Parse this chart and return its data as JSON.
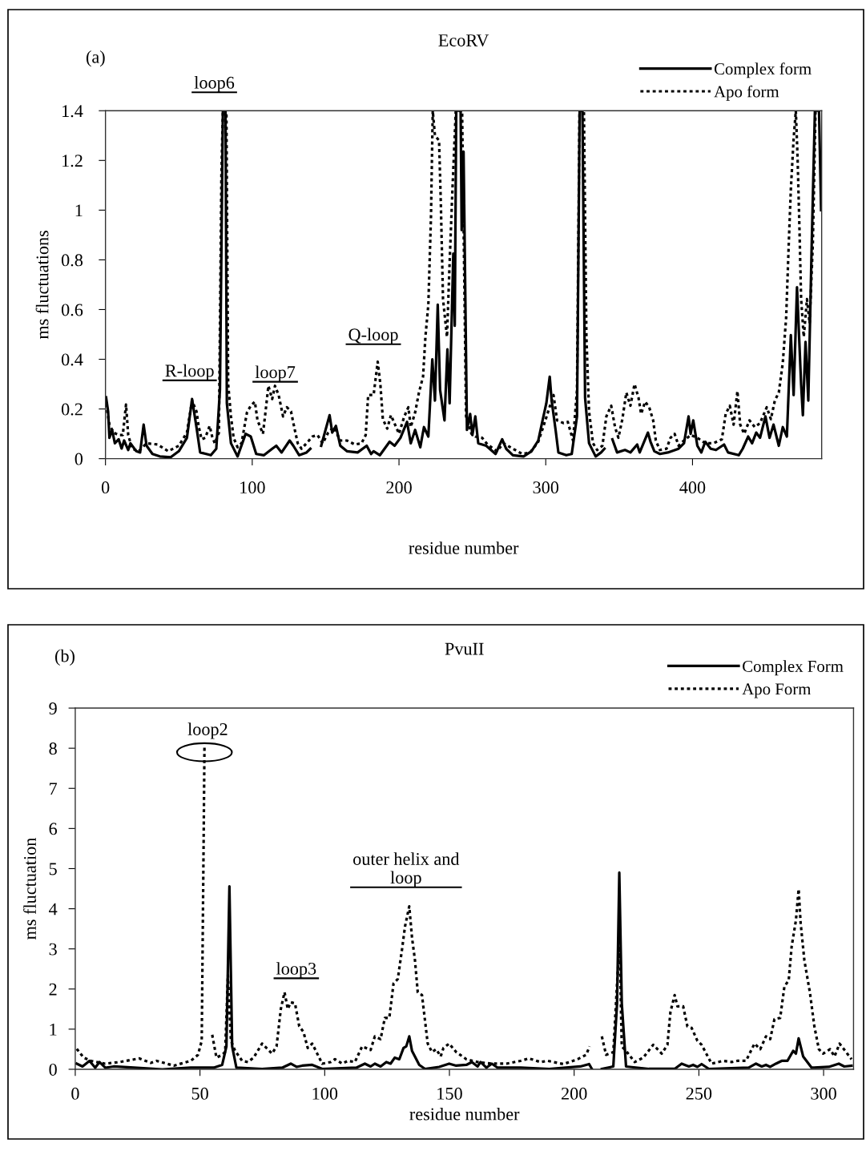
{
  "chart_data": [
    {
      "type": "line",
      "title": "EcoRV",
      "xlabel": "residue number",
      "ylabel": "ms fluctuations",
      "xlim": [
        0,
        488
      ],
      "ylim": [
        0,
        1.4
      ],
      "xticks": [
        0,
        100,
        200,
        300,
        400
      ],
      "yticks": [
        0,
        0.2,
        0.4,
        0.6,
        0.8,
        1,
        1.2,
        1.4
      ],
      "grid": false,
      "legend": "top right",
      "annotations": [
        "(a)",
        "loop6",
        "R-loop",
        "loop7",
        "Q-loop"
      ],
      "series": [
        {
          "name": "Complex form",
          "color": "#000000",
          "line_style": "solid",
          "x": [
            0.4,
            1.8,
            2.7,
            4.5,
            6.4,
            9,
            11,
            12.7,
            15.5,
            17,
            21,
            23.6,
            26,
            28,
            32,
            37,
            44.5,
            50,
            55.5,
            59,
            62,
            64.5,
            71.8,
            75.5,
            78,
            80,
            81.8,
            82.7,
            85.5,
            90,
            95.5,
            99,
            102.7,
            108,
            113.6,
            116.4,
            120,
            125.5,
            128,
            132,
            137,
            139.6,
            143,
            147,
            152.7,
            154.5,
            157,
            160,
            164.5,
            171.8,
            178,
            181,
            182.7,
            187,
            193.6,
            197,
            201,
            205.5,
            208,
            211,
            214.5,
            217,
            220,
            222.7,
            224.5,
            226.4,
            228,
            231,
            233,
            234.5,
            237,
            238,
            239,
            242,
            242.7,
            244,
            246.3,
            248.5,
            250,
            252,
            254,
            259.4,
            265.8,
            270.3,
            273,
            277.6,
            284.9,
            290.3,
            294.9,
            297.6,
            300.4,
            302.7,
            304,
            306.7,
            308.6,
            314,
            317.7,
            321.3,
            323.1,
            325,
            326.8,
            329.5,
            334,
            337.7,
            340,
            342.5,
            345.4,
            348.6,
            354,
            357.7,
            362.3,
            364,
            369.6,
            371.4,
            374,
            377.8,
            383.2,
            390.5,
            394.2,
            397.3,
            398.7,
            400.5,
            403.3,
            406,
            408.7,
            412.4,
            416,
            421.5,
            424.2,
            431.5,
            434.2,
            437.9,
            440.6,
            443.4,
            446,
            449.7,
            452.5,
            455.2,
            458.8,
            461.5,
            464.3,
            467,
            468.9,
            471.2,
            474,
            475.2,
            477,
            478.9,
            481.2,
            483.4,
            486.2,
            487.6
          ],
          "values": [
            0.247,
            0.19,
            0.084,
            0.116,
            0.062,
            0.078,
            0.041,
            0.073,
            0.035,
            0.062,
            0.03,
            0.025,
            0.137,
            0.052,
            0.019,
            0.009,
            0.006,
            0.03,
            0.084,
            0.24,
            0.127,
            0.025,
            0.014,
            0.04,
            0.277,
            1.4,
            1.4,
            0.223,
            0.062,
            0.009,
            0.1,
            0.089,
            0.019,
            0.014,
            0.04,
            0.052,
            0.025,
            0.073,
            0.052,
            0.014,
            0.025,
            0.04,
            null,
            0.052,
            0.175,
            0.105,
            0.132,
            0.052,
            0.03,
            0.025,
            0.052,
            0.019,
            0.03,
            0.014,
            0.068,
            0.052,
            0.084,
            0.148,
            0.062,
            0.116,
            0.046,
            0.127,
            0.089,
            0.4,
            0.234,
            0.62,
            0.277,
            0.154,
            0.44,
            0.223,
            0.825,
            0.535,
            1.4,
            1.4,
            0.92,
            1.235,
            0.116,
            0.18,
            0.095,
            0.17,
            0.062,
            0.052,
            0.019,
            0.078,
            0.04,
            0.014,
            0.009,
            0.03,
            0.073,
            0.148,
            0.223,
            0.33,
            0.234,
            0.116,
            0.025,
            0.014,
            0.019,
            0.17,
            1.4,
            1.4,
            0.245,
            0.062,
            0.009,
            0.025,
            0.04,
            null,
            0.078,
            0.025,
            0.035,
            0.025,
            0.057,
            0.025,
            0.105,
            0.068,
            0.03,
            0.019,
            0.025,
            0.04,
            0.062,
            0.17,
            0.1,
            0.154,
            0.052,
            0.025,
            0.068,
            0.04,
            0.035,
            0.057,
            0.025,
            0.014,
            0.04,
            0.089,
            0.062,
            0.105,
            0.084,
            0.17,
            0.084,
            0.137,
            0.052,
            0.127,
            0.089,
            0.497,
            0.256,
            0.69,
            0.3,
            0.175,
            0.47,
            0.234,
            0.857,
            1.4,
            1.4,
            1.0
          ]
        },
        {
          "name": "Apo form",
          "color": "#000000",
          "line_style": "dotted",
          "x": [
            0.4,
            2.7,
            5.5,
            9,
            11.8,
            14,
            15.5,
            18.2,
            22.7,
            28,
            35.5,
            42.7,
            50,
            55.5,
            59,
            62,
            63.6,
            65.5,
            68,
            71,
            72.7,
            74.5,
            77.3,
            79,
            80,
            82.4,
            83.6,
            85.5,
            87.3,
            90,
            92.7,
            96.4,
            99,
            101.8,
            103.6,
            107.3,
            109,
            111,
            113.6,
            115.5,
            118,
            121,
            123.6,
            126.4,
            129,
            131,
            133.6,
            137,
            141,
            144.5,
            148,
            151.8,
            155.5,
            160,
            164.5,
            170,
            174.5,
            177.3,
            179,
            182.7,
            185.5,
            187.3,
            189,
            192,
            194.5,
            197.3,
            200,
            203.6,
            206.4,
            208,
            211,
            213.6,
            216.4,
            218,
            220,
            221.8,
            223,
            224.5,
            227.3,
            228.5,
            230,
            232.7,
            234.5,
            236.4,
            238.7,
            243,
            245.7,
            249.4,
            252,
            256.6,
            260.3,
            266.7,
            271.2,
            277.6,
            284,
            289.4,
            294.9,
            298.5,
            302.2,
            305.3,
            307.7,
            312.2,
            315,
            318.6,
            321.3,
            323,
            326,
            327.7,
            329.5,
            332.2,
            335,
            338.6,
            341.3,
            344.6,
            347.2,
            349.5,
            352.2,
            354.9,
            357.7,
            360.5,
            363.2,
            365,
            367.7,
            370.5,
            373.2,
            375,
            377.8,
            382.3,
            385,
            387.8,
            390.5,
            394.2,
            398.7,
            403.3,
            408.7,
            414.2,
            420,
            422.6,
            425.4,
            428,
            430.6,
            432.5,
            435.2,
            438.8,
            442.4,
            446,
            450.6,
            453.4,
            456.1,
            458.8,
            461.5,
            463.8,
            465.6,
            467,
            468.9,
            470.4,
            471.6,
            472.9,
            474,
            475.8,
            478,
            479.8,
            482,
            483.8,
            486.2
          ],
          "values": [
            0.22,
            0.137,
            0.105,
            0.095,
            0.095,
            0.218,
            0.095,
            0.04,
            0.03,
            0.062,
            0.057,
            0.03,
            0.052,
            0.105,
            0.234,
            0.19,
            0.127,
            0.078,
            0.084,
            0.132,
            0.089,
            0.062,
            0.105,
            1.14,
            1.4,
            1.4,
            0.3,
            0.17,
            0.084,
            0.046,
            0.062,
            0.186,
            0.213,
            0.229,
            0.154,
            0.1,
            0.186,
            0.293,
            0.24,
            0.293,
            0.256,
            0.17,
            0.207,
            0.19,
            0.116,
            0.062,
            0.04,
            0.062,
            0.089,
            0.095,
            0.062,
            0.105,
            0.127,
            0.073,
            0.073,
            0.057,
            0.062,
            0.095,
            0.256,
            0.256,
            0.39,
            0.3,
            0.159,
            0.121,
            0.175,
            0.137,
            0.1,
            0.17,
            0.207,
            0.127,
            0.186,
            0.266,
            0.33,
            0.49,
            0.62,
            0.975,
            1.4,
            1.3,
            1.28,
            1.03,
            0.642,
            0.49,
            0.79,
            1.08,
            1.4,
            1.4,
            0.17,
            0.1,
            0.089,
            0.084,
            0.057,
            0.03,
            0.062,
            0.04,
            0.019,
            0.025,
            0.068,
            0.132,
            0.2,
            0.256,
            0.154,
            0.143,
            0.148,
            0.073,
            0.277,
            1.4,
            1.4,
            0.49,
            0.19,
            0.062,
            0.035,
            0.052,
            0.17,
            0.213,
            0.127,
            0.084,
            0.159,
            0.266,
            0.213,
            0.3,
            0.245,
            0.18,
            0.229,
            0.207,
            0.154,
            0.073,
            0.035,
            0.04,
            0.084,
            0.1,
            0.052,
            0.073,
            0.095,
            0.084,
            0.062,
            0.062,
            0.078,
            0.18,
            0.213,
            0.137,
            0.272,
            0.137,
            0.1,
            0.154,
            0.127,
            0.143,
            0.207,
            0.159,
            0.234,
            0.266,
            0.385,
            0.567,
            0.868,
            1.083,
            1.287,
            1.4,
            1.21,
            0.92,
            0.642,
            0.49,
            0.642,
            0.545,
            0.868,
            1.4,
            1.4
          ]
        }
      ]
    },
    {
      "type": "line",
      "title": "PvuII",
      "xlabel": "residue number",
      "ylabel": "ms fluctuation",
      "xlim": [
        0,
        312
      ],
      "ylim": [
        0,
        9
      ],
      "xticks": [
        0,
        50,
        100,
        150,
        200,
        250,
        300
      ],
      "yticks": [
        0,
        1,
        2,
        3,
        4,
        5,
        6,
        7,
        8,
        9
      ],
      "grid": false,
      "legend": "top right",
      "annotations": [
        "(b)",
        {
          "text": "loop2",
          "x": 51.8,
          "y": 7.9
        },
        "loop3",
        "outer helix and\nloop"
      ],
      "series": [
        {
          "name": "Complex Form",
          "color": "#000000",
          "line_style": "solid",
          "x": [
            0.6,
            2.9,
            5.7,
            8,
            9.7,
            12,
            15.4,
            23.5,
            34.9,
            46.3,
            55.5,
            58.9,
            60.6,
            61.8,
            62.9,
            64.6,
            74.9,
            83,
            86.4,
            88.7,
            91,
            95,
            99,
            112.7,
            116.1,
            118.4,
            120.1,
            122.4,
            124.7,
            126.4,
            128.1,
            129.9,
            131.6,
            132.7,
            133.9,
            135,
            137.9,
            140.2,
            145.9,
            149.9,
            152.7,
            156.8,
            159,
            161.3,
            162.5,
            164.8,
            167,
            169.3,
            178.5,
            190,
            202.5,
            206,
            207.1,
            209,
            211.1,
            215.7,
            217.2,
            218.1,
            219.1,
            220.8,
            230,
            240.3,
            243.1,
            246,
            247.7,
            249.4,
            251.1,
            254,
            270,
            272.9,
            275.2,
            276.9,
            278.6,
            280.9,
            283.2,
            285.5,
            287.8,
            288.9,
            290,
            291.8,
            295.2,
            302.1,
            306.1,
            308.3,
            311.2
          ],
          "values": [
            0.14,
            0.07,
            0.21,
            0.04,
            0.18,
            0.04,
            0.07,
            0.04,
            0,
            0.04,
            0.04,
            0.11,
            0.57,
            4.56,
            0.57,
            0.04,
            0.01,
            0.04,
            0.14,
            0.06,
            0.09,
            0.11,
            0.01,
            0.04,
            0.14,
            0.07,
            0.14,
            0.07,
            0.18,
            0.14,
            0.29,
            0.25,
            0.53,
            0.57,
            0.82,
            0.46,
            0.11,
            0.01,
            0.06,
            0.14,
            0.09,
            0.11,
            0.18,
            0.07,
            0.18,
            0.04,
            0.14,
            0.04,
            0.04,
            0.01,
            0.07,
            0.13,
            0.01,
            null,
            0.01,
            0.07,
            1.64,
            4.9,
            1.64,
            0.07,
            0.01,
            0.01,
            0.14,
            0.07,
            0.11,
            0.06,
            0.13,
            0.01,
            0.04,
            0.14,
            0.07,
            0.11,
            0.06,
            0.14,
            0.21,
            0.21,
            0.46,
            0.39,
            0.77,
            0.32,
            0.04,
            0.06,
            0.14,
            0.07,
            0.09
          ]
        },
        {
          "name": "Apo Form",
          "color": "#000000",
          "line_style": "dotted",
          "x": [
            0.6,
            3.4,
            6.3,
            12,
            17.7,
            25.7,
            30.3,
            32.6,
            39.5,
            46.3,
            49.2,
            50.7,
            51.5,
            51.8,
            53.5,
            54.9,
            56.6,
            58.9,
            60.1,
            61.2,
            62.4,
            64.1,
            66.9,
            69.2,
            71.5,
            74.9,
            78.9,
            80.7,
            82.4,
            83.9,
            85.2,
            86.4,
            88.1,
            89.8,
            91.5,
            93.2,
            95,
            99,
            102.4,
            104.1,
            107,
            109.3,
            112.1,
            115,
            118.4,
            120.1,
            122.4,
            124.1,
            125.9,
            127.6,
            129.3,
            131,
            132.2,
            133.9,
            135,
            136.2,
            137.3,
            139,
            141.3,
            143,
            144.7,
            146.5,
            147.6,
            149.9,
            152.7,
            156.8,
            161.3,
            167,
            172.8,
            178.5,
            181.9,
            186.5,
            189.4,
            195.7,
            201.4,
            204.8,
            206.2,
            209,
            211.1,
            212.8,
            215.7,
            217.4,
            218.2,
            219.1,
            220.8,
            224.3,
            227.7,
            231.7,
            235.1,
            237.4,
            238.6,
            240.3,
            241.4,
            243.7,
            245.4,
            247.1,
            249.4,
            251.1,
            255.1,
            259.7,
            263.2,
            265.4,
            268.9,
            272.3,
            274.6,
            276.9,
            278.6,
            280.3,
            282.6,
            284.3,
            286,
            287.2,
            288.9,
            290,
            290.8,
            292.3,
            294.5,
            296.3,
            298.1,
            299.8,
            302.6,
            304.4,
            306.4,
            309,
            311.2
          ],
          "values": [
            0.51,
            0.29,
            0.21,
            0.14,
            0.18,
            0.27,
            0.16,
            0.21,
            0.09,
            0.21,
            0.36,
            0.71,
            5.92,
            8.05,
            null,
            0.86,
            0.29,
            0.36,
            0.43,
            2.35,
            0.71,
            0.46,
            0.21,
            0.18,
            0.29,
            0.64,
            0.39,
            0.57,
            1.5,
            1.92,
            1.5,
            1.67,
            1.64,
            1.07,
            0.93,
            0.53,
            0.64,
            0.14,
            0.18,
            0.25,
            0.14,
            0.21,
            0.18,
            0.57,
            0.48,
            0.82,
            0.75,
            1.28,
            1.28,
            2.14,
            2.25,
            2.99,
            3.56,
            4.06,
            3.28,
            2.71,
            1.92,
            1.85,
            0.64,
            0.43,
            0.5,
            0.32,
            0.53,
            0.64,
            0.43,
            0.25,
            0.18,
            0.14,
            0.14,
            0.21,
            0.27,
            0.18,
            0.21,
            0.13,
            0.25,
            0.36,
            0.57,
            null,
            0.82,
            0.36,
            0.43,
            2.35,
            3.06,
            0.57,
            0.46,
            0.18,
            0.29,
            0.61,
            0.39,
            0.61,
            1.43,
            1.85,
            1.57,
            1.57,
            1.07,
            1.03,
            0.71,
            0.61,
            0.14,
            0.21,
            0.18,
            0.21,
            0.21,
            0.64,
            0.5,
            0.82,
            0.75,
            1.25,
            1.28,
            2.07,
            2.21,
            3.06,
            3.71,
            4.49,
            3.64,
            2.71,
            1.92,
            1.07,
            0.5,
            0.39,
            0.5,
            0.32,
            0.64,
            0.43,
            0.25
          ]
        }
      ]
    }
  ]
}
